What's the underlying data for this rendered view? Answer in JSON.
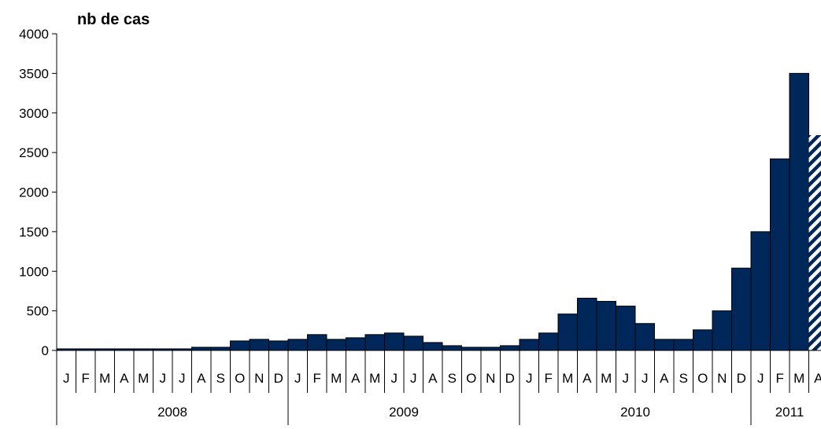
{
  "chart_data": {
    "type": "bar",
    "title": "",
    "ylabel": "nb de cas",
    "xlabel": "",
    "ylim": [
      0,
      4000
    ],
    "yticks": [
      0,
      500,
      1000,
      1500,
      2000,
      2500,
      3000,
      3500,
      4000
    ],
    "grid": false,
    "categories": [
      "J",
      "F",
      "M",
      "A",
      "M",
      "J",
      "J",
      "A",
      "S",
      "O",
      "N",
      "D",
      "J",
      "F",
      "M",
      "A",
      "M",
      "J",
      "J",
      "A",
      "S",
      "O",
      "N",
      "D",
      "J",
      "F",
      "M",
      "A",
      "M",
      "J",
      "J",
      "A",
      "S",
      "O",
      "N",
      "D",
      "J",
      "F",
      "M",
      "A"
    ],
    "years": [
      {
        "label": "2008",
        "months": 12
      },
      {
        "label": "2009",
        "months": 12
      },
      {
        "label": "2010",
        "months": 12
      },
      {
        "label": "2011",
        "months": 4
      }
    ],
    "values": [
      20,
      20,
      20,
      20,
      20,
      20,
      20,
      40,
      40,
      120,
      140,
      120,
      140,
      200,
      140,
      160,
      200,
      220,
      180,
      100,
      60,
      40,
      40,
      60,
      140,
      220,
      460,
      660,
      620,
      560,
      340,
      140,
      140,
      260,
      500,
      1040,
      1500,
      2420,
      3500,
      2720
    ],
    "partial_last": true,
    "bar_color": "#00275A"
  }
}
